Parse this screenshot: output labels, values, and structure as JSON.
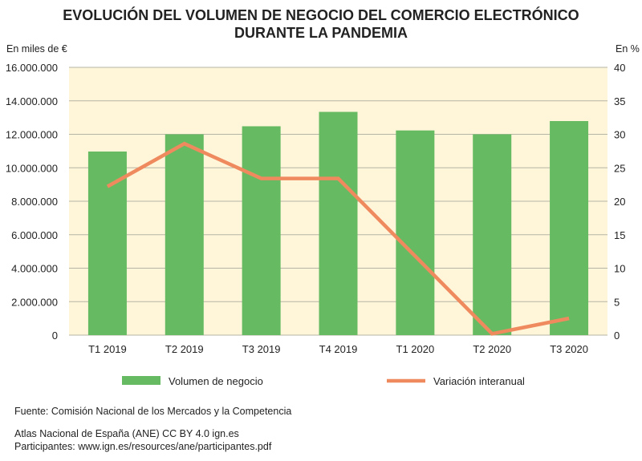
{
  "chart_data": {
    "type": "bar+line",
    "title": [
      "EVOLUCIÓN DEL VOLUMEN DE NEGOCIO DEL COMERCIO ELECTRÓNICO",
      "DURANTE LA PANDEMIA"
    ],
    "ylabel_left": "En miles de €",
    "ylabel_right": "En %",
    "categories": [
      "T1 2019",
      "T2 2019",
      "T3 2019",
      "T4 2019",
      "T1 2020",
      "T2 2020",
      "T3 2020"
    ],
    "ylim_left": [
      0,
      16000000
    ],
    "ylim_right": [
      0,
      40
    ],
    "yticks_left": [
      "0",
      "2.000.000",
      "4.000.000",
      "6.000.000",
      "8.000.000",
      "10.000.000",
      "12.000.000",
      "14.000.000",
      "16.000.000"
    ],
    "yticks_right": [
      "0",
      "5",
      "10",
      "15",
      "20",
      "25",
      "30",
      "35",
      "40"
    ],
    "grid": true,
    "legend_position": "bottom",
    "series": [
      {
        "name": "Volumen de negocio",
        "type": "bar",
        "axis": "left",
        "color": "#66bb62",
        "values": [
          10970000,
          12000000,
          12480000,
          13340000,
          12230000,
          12000000,
          12790000
        ]
      },
      {
        "name": "Variación interanual",
        "type": "line",
        "axis": "right",
        "color": "#ef8a5e",
        "values": [
          22.2,
          28.6,
          23.4,
          23.4,
          11.8,
          0.2,
          2.5
        ]
      }
    ],
    "background_color": "#fff5d9"
  },
  "footer": {
    "source": "Fuente: Comisión Nacional de los Mercados y la Competencia",
    "atlas": "Atlas Nacional de España (ANE) CC BY 4.0 ign.es",
    "participants": "Participantes: www.ign.es/resources/ane/participantes.pdf"
  }
}
